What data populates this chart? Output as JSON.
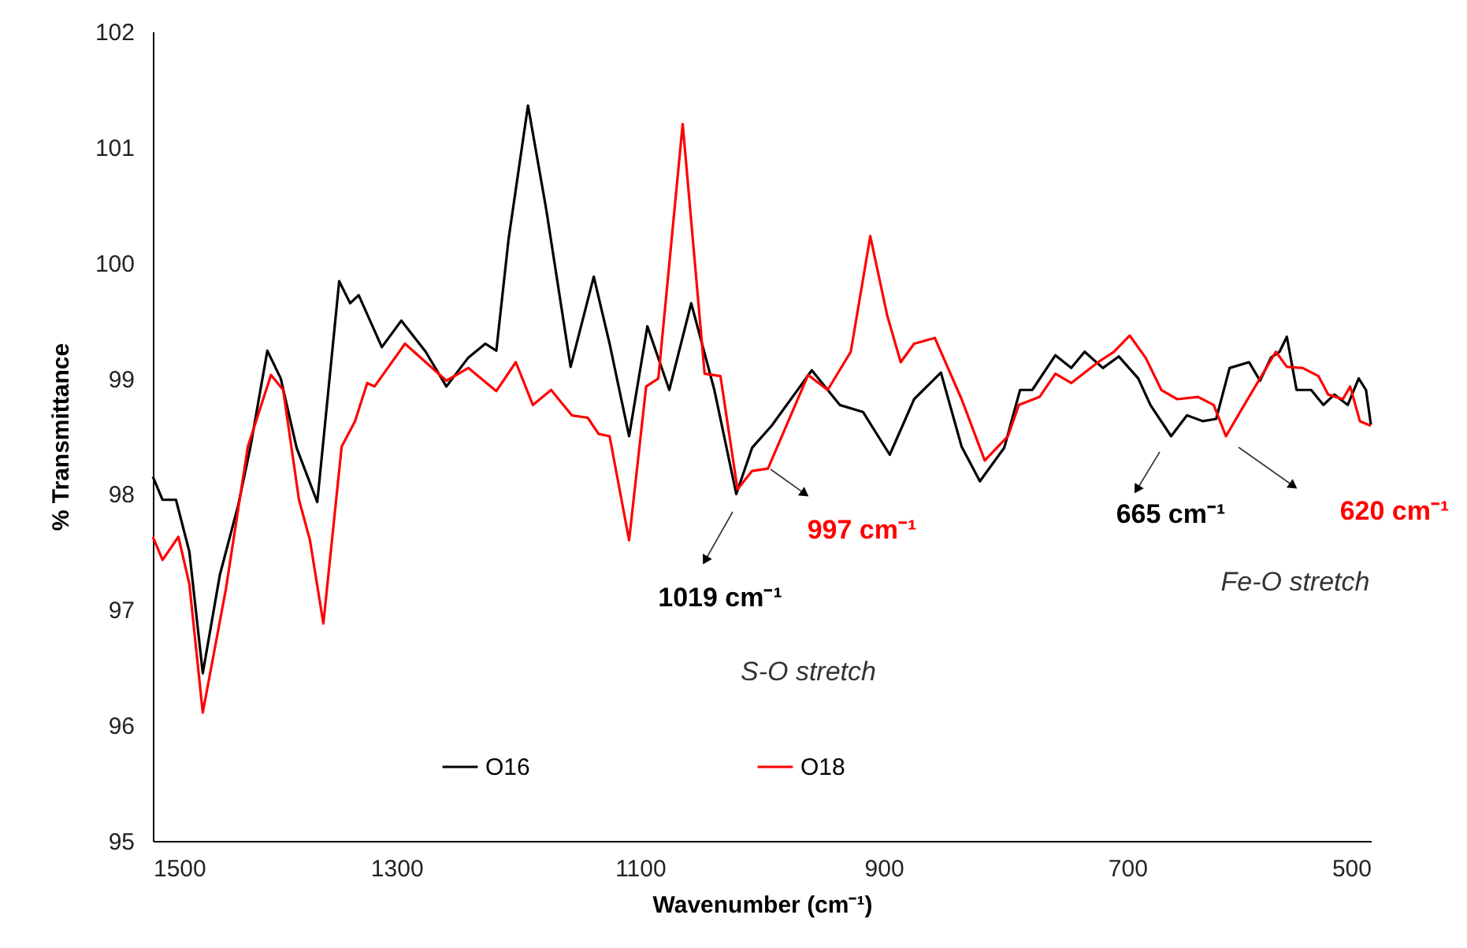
{
  "chart_data": {
    "type": "line",
    "xlabel": "Wavenumber (cm⁻¹)",
    "ylabel": "% Transmittance",
    "xlim": [
      1500,
      500
    ],
    "xticks": [
      1500,
      1300,
      1100,
      900,
      700,
      500
    ],
    "ylim": [
      95,
      102
    ],
    "yticks": [
      95,
      96,
      97,
      98,
      99,
      100,
      101,
      102
    ],
    "grid": false,
    "legend": "bottom",
    "line_style": "solid",
    "marker": "none",
    "series": [
      {
        "name": "O16",
        "color": "#000000",
        "x": [
          1500,
          1492,
          1481,
          1470,
          1459,
          1445,
          1430,
          1420,
          1406,
          1395,
          1382,
          1365,
          1347,
          1338,
          1331,
          1312,
          1296,
          1276,
          1259,
          1241,
          1227,
          1218,
          1208,
          1192,
          1177,
          1157,
          1138,
          1125,
          1109,
          1094,
          1076,
          1058,
          1039,
          1021,
          1008,
          992,
          959,
          936,
          917,
          895,
          875,
          853,
          836,
          821,
          801,
          788,
          778,
          759,
          746,
          735,
          720,
          707,
          691,
          681,
          664,
          651,
          638,
          627,
          616,
          600,
          591,
          582,
          575,
          569,
          561,
          549,
          539,
          530,
          519,
          510,
          504,
          500
        ],
        "values": [
          98.15,
          97.95,
          97.95,
          97.5,
          96.45,
          97.3,
          97.9,
          98.4,
          99.24,
          99.0,
          98.4,
          97.93,
          99.84,
          99.65,
          99.72,
          99.27,
          99.5,
          99.23,
          98.93,
          99.18,
          99.3,
          99.24,
          100.2,
          101.36,
          100.46,
          99.1,
          99.88,
          99.3,
          98.5,
          99.45,
          98.9,
          99.65,
          98.9,
          98.0,
          98.4,
          98.59,
          99.07,
          98.77,
          98.71,
          98.34,
          98.82,
          99.05,
          98.41,
          98.11,
          98.4,
          98.9,
          98.9,
          99.2,
          99.09,
          99.23,
          99.09,
          99.19,
          99.0,
          98.77,
          98.5,
          98.68,
          98.63,
          98.65,
          99.09,
          99.14,
          98.98,
          99.18,
          99.23,
          99.36,
          98.9,
          98.9,
          98.77,
          98.86,
          98.77,
          99.0,
          98.9,
          98.6
        ]
      },
      {
        "name": "O18",
        "color": "#ff0000",
        "x": [
          1500,
          1492,
          1479,
          1470,
          1459,
          1440,
          1422,
          1403,
          1393,
          1380,
          1371,
          1360,
          1345,
          1334,
          1324,
          1318,
          1293,
          1276,
          1259,
          1241,
          1218,
          1202,
          1188,
          1173,
          1156,
          1143,
          1134,
          1125,
          1109,
          1095,
          1085,
          1065,
          1047,
          1034,
          1020,
          1008,
          995,
          962,
          946,
          927,
          911,
          897,
          886,
          875,
          858,
          836,
          817,
          798,
          789,
          772,
          759,
          746,
          724,
          711,
          698,
          685,
          672,
          659,
          642,
          629,
          619,
          604,
          591,
          578,
          569,
          556,
          543,
          535,
          523,
          517,
          509,
          500
        ],
        "values": [
          97.63,
          97.43,
          97.63,
          97.22,
          96.11,
          97.18,
          98.41,
          99.03,
          98.9,
          97.95,
          97.6,
          96.88,
          98.41,
          98.63,
          98.96,
          98.93,
          99.3,
          99.14,
          98.98,
          99.09,
          98.89,
          99.14,
          98.77,
          98.9,
          98.68,
          98.66,
          98.52,
          98.5,
          97.6,
          98.93,
          99.0,
          101.2,
          99.04,
          99.02,
          98.04,
          98.2,
          98.22,
          99.03,
          98.9,
          99.23,
          100.23,
          99.54,
          99.14,
          99.3,
          99.35,
          98.82,
          98.29,
          98.5,
          98.77,
          98.84,
          99.04,
          98.96,
          99.14,
          99.23,
          99.37,
          99.18,
          98.9,
          98.82,
          98.84,
          98.77,
          98.5,
          98.77,
          99.0,
          99.23,
          99.1,
          99.09,
          99.02,
          98.86,
          98.82,
          98.93,
          98.63,
          98.59
        ]
      }
    ],
    "annotations": [
      "1019 cm⁻¹",
      "997 cm⁻¹",
      "665 cm⁻¹",
      "620 cm⁻¹",
      "S-O stretch",
      "Fe-O stretch"
    ]
  }
}
